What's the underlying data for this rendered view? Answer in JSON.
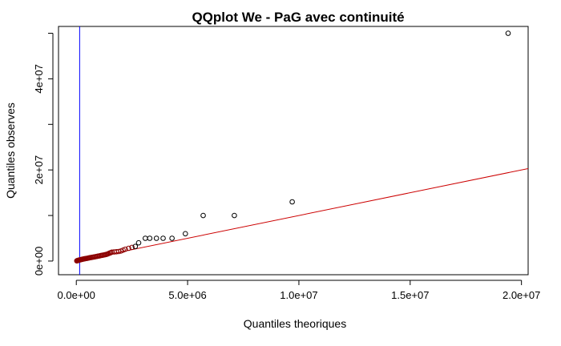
{
  "chart_data": {
    "type": "scatter",
    "title": "QQplot We - PaG avec continuité",
    "xlabel": "Quantiles theoriques",
    "ylabel": "Quantiles observes",
    "xlim": [
      -800000,
      20300000
    ],
    "ylim": [
      -3000000,
      51500000
    ],
    "x_ticks": [
      0,
      5000000,
      10000000,
      15000000,
      20000000
    ],
    "x_tick_labels": [
      "0.0e+00",
      "5.0e+06",
      "1.0e+07",
      "1.5e+07",
      "2.0e+07"
    ],
    "y_ticks": [
      0,
      20000000,
      40000000
    ],
    "y_tick_labels": [
      "0e+00",
      "2e+07",
      "4e+07"
    ],
    "y_minor_ticks": [
      10000000,
      30000000,
      50000000
    ],
    "reference_line": {
      "color": "#cc0000",
      "points": [
        [
          0,
          0
        ],
        [
          20300000,
          20300000
        ]
      ]
    },
    "vertical_line": {
      "color": "#0000ff",
      "x": 150000
    },
    "colors": {
      "points": "#000000",
      "dense_points": "#8b0000"
    },
    "points": [
      [
        20000,
        50000
      ],
      [
        40000,
        80000
      ],
      [
        60000,
        120000
      ],
      [
        80000,
        150000
      ],
      [
        100000,
        180000
      ],
      [
        120000,
        200000
      ],
      [
        140000,
        230000
      ],
      [
        160000,
        260000
      ],
      [
        180000,
        290000
      ],
      [
        200000,
        320000
      ],
      [
        230000,
        350000
      ],
      [
        260000,
        380000
      ],
      [
        290000,
        420000
      ],
      [
        320000,
        450000
      ],
      [
        350000,
        480000
      ],
      [
        380000,
        510000
      ],
      [
        420000,
        550000
      ],
      [
        460000,
        580000
      ],
      [
        500000,
        620000
      ],
      [
        540000,
        660000
      ],
      [
        580000,
        700000
      ],
      [
        620000,
        740000
      ],
      [
        660000,
        780000
      ],
      [
        700000,
        820000
      ],
      [
        750000,
        860000
      ],
      [
        800000,
        900000
      ],
      [
        850000,
        950000
      ],
      [
        900000,
        1000000
      ],
      [
        950000,
        1050000
      ],
      [
        1000000,
        1100000
      ],
      [
        1050000,
        1150000
      ],
      [
        1100000,
        1200000
      ],
      [
        1150000,
        1250000
      ],
      [
        1200000,
        1300000
      ],
      [
        1250000,
        1350000
      ],
      [
        1300000,
        1400000
      ],
      [
        1350000,
        1450000
      ],
      [
        1400000,
        1550000
      ],
      [
        1450000,
        1650000
      ],
      [
        1500000,
        1750000
      ],
      [
        1550000,
        1850000
      ],
      [
        1600000,
        1950000
      ],
      [
        1700000,
        2000000
      ],
      [
        1800000,
        2050000
      ],
      [
        1900000,
        2100000
      ],
      [
        2000000,
        2200000
      ],
      [
        2100000,
        2400000
      ],
      [
        2200000,
        2600000
      ],
      [
        2350000,
        2800000
      ],
      [
        2500000,
        3000000
      ],
      [
        2650000,
        3200000
      ],
      [
        2800000,
        4000000
      ],
      [
        3100000,
        5000000
      ],
      [
        3300000,
        5000000
      ],
      [
        3600000,
        5000000
      ],
      [
        3900000,
        5000000
      ],
      [
        4300000,
        5000000
      ],
      [
        4900000,
        6000000
      ],
      [
        5700000,
        10000000
      ],
      [
        7100000,
        10000000
      ],
      [
        9700000,
        13000000
      ],
      [
        19400000,
        50000000
      ]
    ]
  }
}
